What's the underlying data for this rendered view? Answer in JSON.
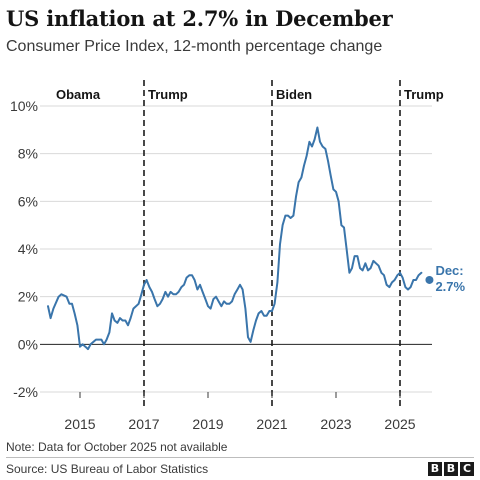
{
  "title": "US inflation at 2.7% in December",
  "subtitle": "Consumer Price Index, 12-month percentage change",
  "note": "Note: Data for October 2025 not available",
  "source": "Source: US Bureau of Labor Statistics",
  "logo_letters": [
    "B",
    "B",
    "C"
  ],
  "colors": {
    "series": "#3a75ab",
    "text": "#141414",
    "grid": "#d9d9d9",
    "zero": "#222222"
  },
  "chart_data": {
    "type": "line",
    "title": "US inflation at 2.7% in December",
    "xlabel": "",
    "ylabel": "",
    "xlim": [
      2014.0,
      2026.0
    ],
    "ylim": [
      -2,
      10
    ],
    "yticks": [
      -2,
      0,
      2,
      4,
      6,
      8,
      10
    ],
    "ytick_labels": [
      "-2%",
      "0%",
      "2%",
      "4%",
      "6%",
      "8%",
      "10%"
    ],
    "xticks": [
      2015,
      2017,
      2019,
      2021,
      2023,
      2025
    ],
    "xtick_labels": [
      "2015",
      "2017",
      "2019",
      "2021",
      "2023",
      "2025"
    ],
    "grid": true,
    "presidencies": [
      {
        "name": "Obama",
        "start": 2014.0
      },
      {
        "name": "Trump",
        "start": 2017.0
      },
      {
        "name": "Biden",
        "start": 2021.0
      },
      {
        "name": "Trump",
        "start": 2025.0
      }
    ],
    "series": [
      {
        "points": [
          [
            2014.0,
            1.6
          ],
          [
            2014.08,
            1.1
          ],
          [
            2014.17,
            1.5
          ],
          [
            2014.33,
            2.0
          ],
          [
            2014.42,
            2.1
          ],
          [
            2014.58,
            2.0
          ],
          [
            2014.67,
            1.7
          ],
          [
            2014.75,
            1.7
          ],
          [
            2014.83,
            1.3
          ],
          [
            2014.92,
            0.8
          ],
          [
            2015.0,
            -0.1
          ],
          [
            2015.08,
            0.0
          ],
          [
            2015.17,
            -0.1
          ],
          [
            2015.25,
            -0.2
          ],
          [
            2015.33,
            0.0
          ],
          [
            2015.5,
            0.2
          ],
          [
            2015.67,
            0.2
          ],
          [
            2015.75,
            0.0
          ],
          [
            2015.83,
            0.2
          ],
          [
            2015.92,
            0.5
          ],
          [
            2016.0,
            1.3
          ],
          [
            2016.08,
            1.0
          ],
          [
            2016.17,
            0.9
          ],
          [
            2016.25,
            1.1
          ],
          [
            2016.33,
            1.0
          ],
          [
            2016.42,
            1.0
          ],
          [
            2016.5,
            0.8
          ],
          [
            2016.58,
            1.1
          ],
          [
            2016.67,
            1.5
          ],
          [
            2016.83,
            1.7
          ],
          [
            2016.92,
            2.1
          ],
          [
            2017.0,
            2.5
          ],
          [
            2017.08,
            2.7
          ],
          [
            2017.17,
            2.4
          ],
          [
            2017.25,
            2.2
          ],
          [
            2017.33,
            1.9
          ],
          [
            2017.42,
            1.6
          ],
          [
            2017.5,
            1.7
          ],
          [
            2017.58,
            1.9
          ],
          [
            2017.67,
            2.2
          ],
          [
            2017.75,
            2.0
          ],
          [
            2017.83,
            2.2
          ],
          [
            2017.92,
            2.1
          ],
          [
            2018.0,
            2.1
          ],
          [
            2018.08,
            2.2
          ],
          [
            2018.17,
            2.4
          ],
          [
            2018.25,
            2.5
          ],
          [
            2018.33,
            2.8
          ],
          [
            2018.42,
            2.9
          ],
          [
            2018.5,
            2.9
          ],
          [
            2018.58,
            2.7
          ],
          [
            2018.67,
            2.3
          ],
          [
            2018.75,
            2.5
          ],
          [
            2018.83,
            2.2
          ],
          [
            2018.92,
            1.9
          ],
          [
            2019.0,
            1.6
          ],
          [
            2019.08,
            1.5
          ],
          [
            2019.17,
            1.9
          ],
          [
            2019.25,
            2.0
          ],
          [
            2019.33,
            1.8
          ],
          [
            2019.42,
            1.6
          ],
          [
            2019.5,
            1.8
          ],
          [
            2019.58,
            1.7
          ],
          [
            2019.67,
            1.7
          ],
          [
            2019.75,
            1.8
          ],
          [
            2019.83,
            2.1
          ],
          [
            2019.92,
            2.3
          ],
          [
            2020.0,
            2.5
          ],
          [
            2020.08,
            2.3
          ],
          [
            2020.17,
            1.5
          ],
          [
            2020.25,
            0.3
          ],
          [
            2020.33,
            0.1
          ],
          [
            2020.42,
            0.6
          ],
          [
            2020.5,
            1.0
          ],
          [
            2020.58,
            1.3
          ],
          [
            2020.67,
            1.4
          ],
          [
            2020.75,
            1.2
          ],
          [
            2020.83,
            1.2
          ],
          [
            2020.92,
            1.4
          ],
          [
            2021.0,
            1.4
          ],
          [
            2021.08,
            1.7
          ],
          [
            2021.17,
            2.6
          ],
          [
            2021.25,
            4.2
          ],
          [
            2021.33,
            5.0
          ],
          [
            2021.42,
            5.4
          ],
          [
            2021.5,
            5.4
          ],
          [
            2021.58,
            5.3
          ],
          [
            2021.67,
            5.4
          ],
          [
            2021.75,
            6.2
          ],
          [
            2021.83,
            6.8
          ],
          [
            2021.92,
            7.0
          ],
          [
            2022.0,
            7.5
          ],
          [
            2022.08,
            7.9
          ],
          [
            2022.17,
            8.5
          ],
          [
            2022.25,
            8.3
          ],
          [
            2022.33,
            8.6
          ],
          [
            2022.42,
            9.1
          ],
          [
            2022.5,
            8.5
          ],
          [
            2022.58,
            8.3
          ],
          [
            2022.67,
            8.2
          ],
          [
            2022.75,
            7.7
          ],
          [
            2022.83,
            7.1
          ],
          [
            2022.92,
            6.5
          ],
          [
            2023.0,
            6.4
          ],
          [
            2023.08,
            6.0
          ],
          [
            2023.17,
            5.0
          ],
          [
            2023.25,
            4.9
          ],
          [
            2023.33,
            4.0
          ],
          [
            2023.42,
            3.0
          ],
          [
            2023.5,
            3.2
          ],
          [
            2023.58,
            3.7
          ],
          [
            2023.67,
            3.7
          ],
          [
            2023.75,
            3.2
          ],
          [
            2023.83,
            3.1
          ],
          [
            2023.92,
            3.4
          ],
          [
            2024.0,
            3.1
          ],
          [
            2024.08,
            3.2
          ],
          [
            2024.17,
            3.5
          ],
          [
            2024.25,
            3.4
          ],
          [
            2024.33,
            3.3
          ],
          [
            2024.42,
            3.0
          ],
          [
            2024.5,
            2.9
          ],
          [
            2024.58,
            2.5
          ],
          [
            2024.67,
            2.4
          ],
          [
            2024.75,
            2.6
          ],
          [
            2024.83,
            2.7
          ],
          [
            2024.92,
            2.9
          ],
          [
            2025.0,
            3.0
          ],
          [
            2025.08,
            2.8
          ],
          [
            2025.17,
            2.4
          ],
          [
            2025.25,
            2.3
          ],
          [
            2025.33,
            2.4
          ],
          [
            2025.42,
            2.7
          ],
          [
            2025.5,
            2.7
          ],
          [
            2025.58,
            2.9
          ],
          [
            2025.67,
            3.0
          ]
        ]
      }
    ],
    "highlight": {
      "x": 2025.92,
      "y": 2.7,
      "label_line1": "Dec:",
      "label_line2": "2.7%"
    }
  }
}
